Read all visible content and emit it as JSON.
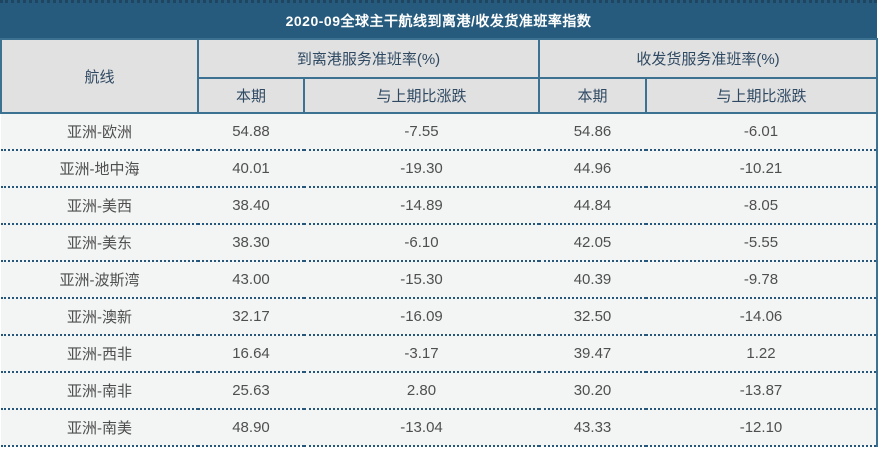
{
  "title_bar": {
    "text": "2020-09全球主干航线到离港/收发货准班率指数"
  },
  "header": {
    "route": "航线",
    "group_departure": "到离港服务准班率(%)",
    "group_cargo": "收发货服务准班率(%)",
    "current": "本期",
    "change": "与上期比涨跌"
  },
  "colors": {
    "title_bar_bg": "#265b7d",
    "title_bar_text": "#ffffff",
    "title_top_dots": "#1f4660",
    "header_bg": "#e1e1e1",
    "header_border": "#3d7191",
    "header_text": "#2f4962",
    "row_bg": "#f3f4f4",
    "row_text": "#4f4f4f",
    "row_divider": "#26577a"
  },
  "chart_data": {
    "type": "table",
    "title": "2020-09全球主干航线到离港/收发货准班率指数",
    "column_groups": [
      "到离港服务准班率(%)",
      "收发货服务准班率(%)"
    ],
    "columns": [
      "航线",
      "到离港服务准班率(%) 本期",
      "到离港服务准班率(%) 与上期比涨跌",
      "收发货服务准班率(%) 本期",
      "收发货服务准班率(%) 与上期比涨跌"
    ],
    "rows": [
      [
        "亚洲-欧洲",
        54.88,
        -7.55,
        54.86,
        -6.01
      ],
      [
        "亚洲-地中海",
        40.01,
        -19.3,
        44.96,
        -10.21
      ],
      [
        "亚洲-美西",
        38.4,
        -14.89,
        44.84,
        -8.05
      ],
      [
        "亚洲-美东",
        38.3,
        -6.1,
        42.05,
        -5.55
      ],
      [
        "亚洲-波斯湾",
        43.0,
        -15.3,
        40.39,
        -9.78
      ],
      [
        "亚洲-澳新",
        32.17,
        -16.09,
        32.5,
        -14.06
      ],
      [
        "亚洲-西非",
        16.64,
        -3.17,
        39.47,
        1.22
      ],
      [
        "亚洲-南非",
        25.63,
        2.8,
        30.2,
        -13.87
      ],
      [
        "亚洲-南美",
        48.9,
        -13.04,
        43.33,
        -12.1
      ]
    ]
  }
}
